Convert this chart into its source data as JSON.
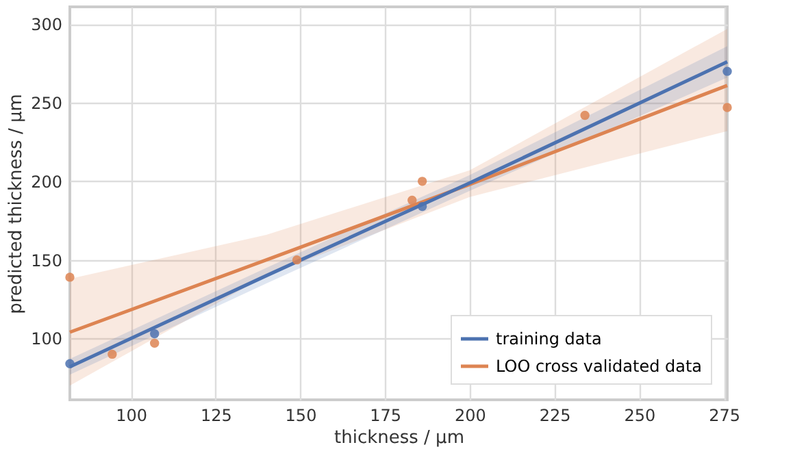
{
  "chart_data": {
    "type": "scatter",
    "xlabel": "thickness / µm",
    "ylabel": "predicted thickness / µm",
    "xlim": [
      82,
      276
    ],
    "ylim": [
      61,
      311
    ],
    "xticks": [
      100,
      125,
      150,
      175,
      200,
      225,
      250,
      275
    ],
    "yticks": [
      100,
      150,
      200,
      250,
      300
    ],
    "grid": true,
    "legend": "bottom right",
    "series": [
      {
        "type": "line",
        "marker": "none",
        "name": "LOO cross validated data",
        "color": "#dd8452",
        "x": [
          82,
          140,
          200,
          276
        ],
        "values": [
          104,
          150,
          198,
          261
        ],
        "lower": [
          70,
          140,
          190,
          232
        ],
        "upper": [
          138,
          166,
          207,
          297
        ]
      },
      {
        "type": "line",
        "marker": "none",
        "name": "training data",
        "color": "#4c72b0",
        "x": [
          82,
          140,
          200,
          276
        ],
        "values": [
          82,
          140,
          199,
          276
        ],
        "lower": [
          77,
          135,
          194,
          266
        ],
        "upper": [
          87,
          145,
          204,
          286
        ]
      },
      {
        "marker": "circle",
        "color": "#4c72b0",
        "x": [
          82,
          94.5,
          107,
          149,
          186,
          234,
          276
        ],
        "values": [
          84,
          null,
          103,
          null,
          184,
          null,
          270
        ]
      },
      {
        "marker": "circle",
        "color": "#dd8452",
        "x": [
          82,
          94.5,
          107,
          149,
          183,
          186,
          234,
          276
        ],
        "values": [
          139,
          90,
          97,
          150,
          188,
          200,
          242,
          247
        ]
      }
    ]
  }
}
